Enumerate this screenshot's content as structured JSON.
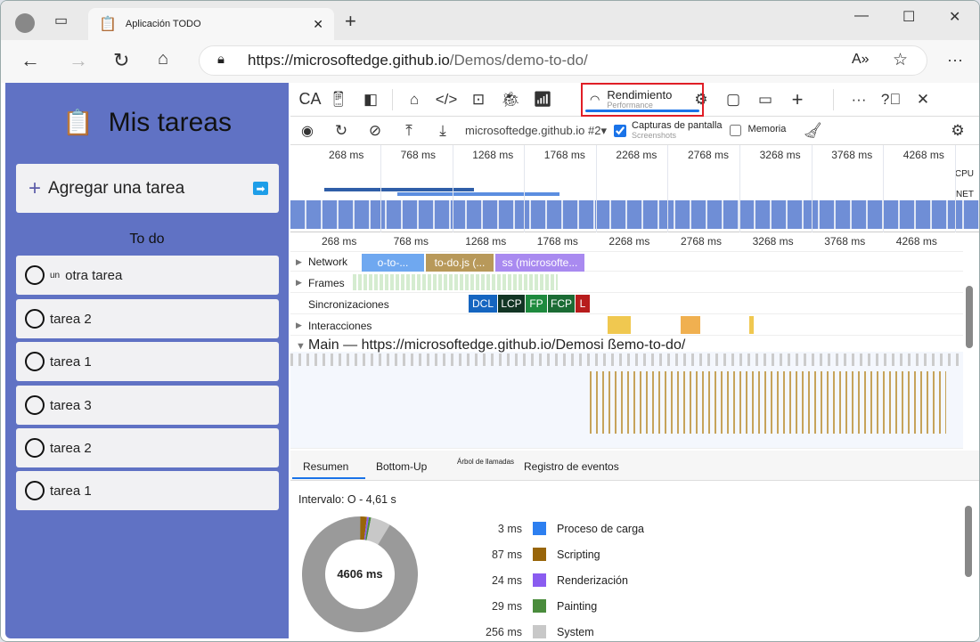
{
  "browser": {
    "tab_title": "Aplicación TODO",
    "url_host": "https://microsoftedge.github.io",
    "url_path": "/Demos/demo-to-do/"
  },
  "app": {
    "title": "Mis tareas",
    "add_task": "Agregar una tarea",
    "section": "To do",
    "tasks": [
      {
        "prefix": "un",
        "label": "otra tarea"
      },
      {
        "prefix": "",
        "label": "tarea 2"
      },
      {
        "prefix": "",
        "label": "tarea 1"
      },
      {
        "prefix": "",
        "label": "tarea 3"
      },
      {
        "prefix": "",
        "label": "tarea 2"
      },
      {
        "prefix": "",
        "label": "tarea 1"
      }
    ]
  },
  "devtools": {
    "toolbar": {
      "ca": "CA",
      "active_tab": "Rendimiento",
      "active_tab_underlay": "Performance"
    },
    "perf_toolbar": {
      "target": "microsoftedge.github.io #2",
      "screenshots_label": "Capturas de pantalla",
      "screenshots_underlay": "Screenshots",
      "screenshots_checked": true,
      "memory_label": "Memoria",
      "memory_checked": false
    },
    "overview": {
      "ticks": [
        "268 ms",
        "768 ms",
        "1268 ms",
        "1768 ms",
        "2268 ms",
        "2768 ms",
        "3268 ms",
        "3768 ms",
        "4268 ms"
      ],
      "cpu": "CPU",
      "net": "NET"
    },
    "timeline": {
      "ticks": [
        "268 ms",
        "768 ms",
        "1268 ms",
        "1768 ms",
        "2268 ms",
        "2768 ms",
        "3268 ms",
        "3768 ms",
        "4268 ms"
      ],
      "tracks": {
        "network": "Network",
        "frames": "Frames",
        "timings": "Sincronizaciones",
        "interactions": "Interacciones",
        "main": "Main — https://microsoftedge.github.io/Demosi ßemo-to-do/"
      },
      "network_items": [
        "o-to-...",
        "to-do.js (...",
        "ss (microsofte..."
      ],
      "markers": [
        {
          "label": "DCL",
          "color": "#1565c0"
        },
        {
          "label": "LCP",
          "color": "#123524"
        },
        {
          "label": "FP",
          "color": "#1e8a3e"
        },
        {
          "label": "FCP",
          "color": "#1b6b34"
        },
        {
          "label": "L",
          "color": "#b71c1c"
        }
      ]
    },
    "bottom_tabs": [
      "Resumen",
      "Bottom-Up",
      "Árbol de llamadas",
      "Registro de eventos"
    ],
    "summary": {
      "range": "Intervalo: O - 4,61 s",
      "total": "4606 ms",
      "items": [
        {
          "value": "3 ms",
          "label": "Proceso de carga",
          "color": "#2d7ff0",
          "ms": 3
        },
        {
          "value": "87 ms",
          "label": "Scripting",
          "color": "#98650a",
          "ms": 87
        },
        {
          "value": "24 ms",
          "label": "Renderización",
          "color": "#8a5cf0",
          "ms": 24
        },
        {
          "value": "29 ms",
          "label": "Painting",
          "color": "#4a8c3c",
          "ms": 29
        },
        {
          "value": "256 ms",
          "label": "System",
          "color": "#c8c8c8",
          "ms": 256
        }
      ],
      "idle_color": "#9a9a9a"
    }
  }
}
